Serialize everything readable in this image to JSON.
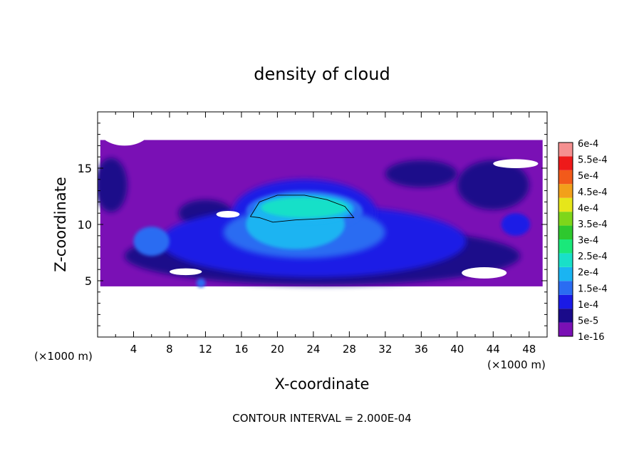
{
  "chart_data": {
    "type": "heatmap",
    "title": "density of cloud",
    "xlabel": "X-coordinate",
    "ylabel": "Z-coordinate",
    "x_unit_label": "(×1000 m)",
    "x_unit_label_right": "(×1000 m)",
    "xlim": [
      0,
      50
    ],
    "ylim": [
      0,
      20
    ],
    "x_ticks": [
      4,
      8,
      12,
      16,
      20,
      24,
      28,
      32,
      36,
      40,
      44,
      48
    ],
    "x_tick_labels": [
      "4",
      "8",
      "12",
      "16",
      "20",
      "24",
      "28",
      "32",
      "36",
      "40",
      "44",
      "48"
    ],
    "y_ticks": [
      5,
      10,
      15
    ],
    "y_tick_labels": [
      "5",
      "10",
      "15"
    ],
    "footer": "CONTOUR INTERVAL = 2.000E-04",
    "colorbar": {
      "labels": [
        "1e-16",
        "5e-5",
        "1e-4",
        "1.5e-4",
        "2e-4",
        "2.5e-4",
        "3e-4",
        "3.5e-4",
        "4e-4",
        "4.5e-4",
        "5e-4",
        "5.5e-4",
        "6e-4"
      ],
      "colors": [
        "#7a10b5",
        "#1a0a8a",
        "#1a1ae6",
        "#2a6cf2",
        "#1ab4f2",
        "#19e0c8",
        "#1ae87a",
        "#2ec82e",
        "#7ed61a",
        "#e6e61a",
        "#f2a01a",
        "#f25a1a",
        "#ee1a1a",
        "#f59090"
      ]
    },
    "grid": false,
    "regions": {
      "domain": {
        "x": [
          0.3,
          49.5
        ],
        "z": [
          4.5,
          17.5
        ]
      },
      "core_cyan": {
        "x": [
          15.5,
          31
        ],
        "z": [
          5.5,
          12.8
        ]
      },
      "contour_2e-4": {
        "x": [
          17,
          28.5
        ],
        "z": [
          10.2,
          12.6
        ]
      }
    }
  }
}
